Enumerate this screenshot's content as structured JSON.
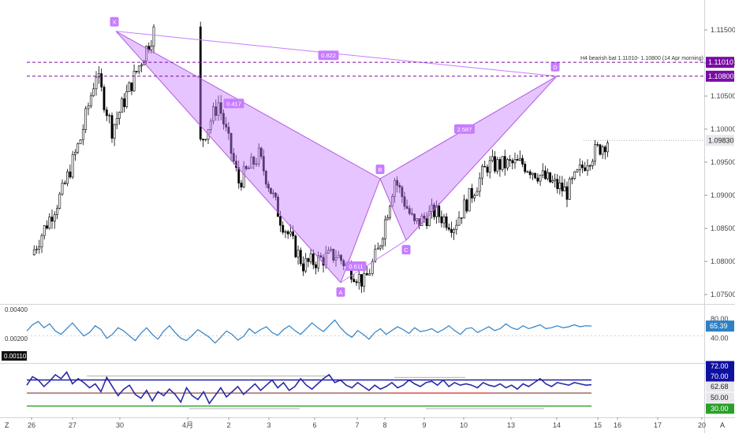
{
  "price_pane": {
    "y_ticks": [
      "1.11500",
      "1.11000",
      "1.10500",
      "1.10000",
      "1.09500",
      "1.09000",
      "1.08500",
      "1.08000",
      "1.07500"
    ],
    "level_labels": [
      {
        "text": "1.11010",
        "value": 1.1101
      },
      {
        "text": "1.10800",
        "value": 1.108
      }
    ],
    "last_price_label": "1.09830",
    "level_annotation": "H4 bearish bat 1.11010- 1.10800 (14 Apr morning)"
  },
  "x_ticks": [
    "26",
    "27",
    "30",
    "4月",
    "2",
    "3",
    "6",
    "7",
    "8",
    "9",
    "10",
    "13",
    "14",
    "15",
    "16",
    "17",
    "20"
  ],
  "corner_labels": {
    "left": "Z",
    "right": "A"
  },
  "pattern": {
    "points": [
      {
        "label": "X",
        "date": "30 Mar",
        "price": 1.1148
      },
      {
        "label": "A",
        "date": "7 Apr",
        "price": 1.0768
      },
      {
        "label": "B",
        "date": "8 Apr",
        "price": 1.0925
      },
      {
        "label": "C",
        "date": "9 Apr",
        "price": 1.0832
      },
      {
        "label": "D",
        "date": "14 Apr",
        "price": 1.108
      }
    ],
    "ratios": [
      "0.822",
      "0.417",
      "0.611",
      "2.587"
    ]
  },
  "oscillator1": {
    "left_value": "0.00400",
    "left_value2": "0.00200",
    "left_highlight": "0.00110",
    "right_ticks": [
      "80.00",
      "40.00"
    ],
    "current_value": "65.39"
  },
  "oscillator2": {
    "right_ticks": [
      "72.00",
      "70.00",
      "62.68",
      "50.00",
      "30.00"
    ],
    "current_value": "62.68"
  },
  "chart_data": [
    {
      "type": "candlestick",
      "title": "",
      "xlabel": "",
      "ylabel": "",
      "ylim": [
        1.0735,
        1.1185
      ],
      "x_tick_labels": [
        "26",
        "27",
        "30",
        "4月",
        "2",
        "3",
        "6",
        "7",
        "8",
        "9",
        "10",
        "13",
        "14",
        "15",
        "16",
        "17",
        "20"
      ],
      "horizontal_levels": [
        1.1101,
        1.108
      ],
      "last_price": 1.0983,
      "price_path": [
        {
          "date": "26 Mar",
          "close": 1.081
        },
        {
          "date": "26 Mar",
          "close": 1.0905
        },
        {
          "date": "27 Mar",
          "close": 1.0985
        },
        {
          "date": "27 Mar",
          "close": 1.1085
        },
        {
          "date": "27 Mar",
          "close": 1.1
        },
        {
          "date": "30 Mar",
          "close": 1.1148
        },
        {
          "date": "31 Mar",
          "close": 1.104
        },
        {
          "date": "1 Apr",
          "close": 1.097
        },
        {
          "date": "1 Apr",
          "close": 1.104
        },
        {
          "date": "2 Apr",
          "close": 1.092
        },
        {
          "date": "2 Apr",
          "close": 1.096
        },
        {
          "date": "3 Apr",
          "close": 1.0865
        },
        {
          "date": "3 Apr",
          "close": 1.0795
        },
        {
          "date": "6 Apr",
          "close": 1.081
        },
        {
          "date": "7 Apr",
          "close": 1.0768
        },
        {
          "date": "7 Apr",
          "close": 1.0815
        },
        {
          "date": "8 Apr",
          "close": 1.0925
        },
        {
          "date": "8 Apr",
          "close": 1.0855
        },
        {
          "date": "9 Apr",
          "close": 1.0875
        },
        {
          "date": "9 Apr",
          "close": 1.0855
        },
        {
          "date": "10 Apr",
          "close": 1.0945
        },
        {
          "date": "13 Apr",
          "close": 1.0948
        },
        {
          "date": "13 Apr",
          "close": 1.0925
        },
        {
          "date": "14 Apr",
          "close": 1.0905
        },
        {
          "date": "14 Apr",
          "close": 1.0955
        },
        {
          "date": "15 Apr",
          "close": 1.0983
        }
      ]
    },
    {
      "type": "line",
      "title": "",
      "ylim": [
        0,
        100
      ],
      "right_axis_ticks": [
        80,
        40
      ],
      "series": [
        {
          "color": "#2f80c4",
          "values": [
            55,
            68,
            75,
            62,
            70,
            55,
            48,
            60,
            72,
            58,
            45,
            52,
            66,
            58,
            40,
            48,
            62,
            55,
            45,
            35,
            50,
            62,
            48,
            38,
            55,
            66,
            52,
            40,
            35,
            46,
            58,
            50,
            42,
            30,
            42,
            55,
            48,
            36,
            44,
            60,
            50,
            58,
            64,
            52,
            46,
            58,
            66,
            56,
            48,
            60,
            72,
            62,
            54,
            66,
            78,
            62,
            50,
            42,
            56,
            48,
            38,
            52,
            60,
            48,
            56,
            64,
            58,
            50,
            62,
            54,
            56,
            60,
            52,
            58,
            66,
            56,
            48,
            60,
            62,
            52,
            58,
            64,
            56,
            60,
            70,
            62,
            58,
            66,
            60,
            64,
            68,
            60,
            62,
            66,
            62,
            64,
            68,
            64,
            66,
            65.39
          ]
        }
      ],
      "current_value": 65.39
    },
    {
      "type": "line",
      "title": "",
      "ylim": [
        0,
        100
      ],
      "right_axis_ticks": [
        70,
        62.68,
        50,
        30
      ],
      "levels": [
        70,
        50,
        30
      ],
      "series": [
        {
          "color": "#2a2aa6",
          "values": [
            62,
            75,
            70,
            60,
            68,
            78,
            72,
            82,
            64,
            72,
            66,
            58,
            64,
            52,
            74,
            60,
            46,
            56,
            62,
            48,
            42,
            54,
            38,
            52,
            46,
            56,
            48,
            36,
            58,
            46,
            40,
            52,
            34,
            46,
            58,
            44,
            52,
            60,
            48,
            56,
            64,
            54,
            62,
            70,
            58,
            66,
            54,
            60,
            72,
            62,
            56,
            64,
            72,
            78,
            66,
            70,
            62,
            58,
            66,
            60,
            54,
            62,
            56,
            60,
            66,
            58,
            62,
            70,
            64,
            60,
            66,
            68,
            62,
            70,
            60,
            66,
            62,
            64,
            62,
            58,
            66,
            62,
            60,
            64,
            58,
            62,
            56,
            64,
            60,
            66,
            72,
            64,
            60,
            66,
            64,
            62,
            66,
            64,
            62,
            62.68
          ]
        }
      ],
      "current_value": 62.68
    }
  ]
}
